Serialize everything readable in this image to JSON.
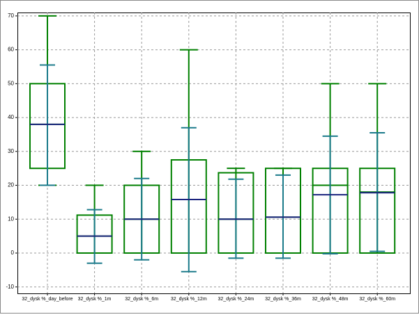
{
  "chart_data": {
    "type": "box",
    "categories": [
      "32_dysk %_day_before",
      "32_dysk %_1m",
      "32_dysk %_6m",
      "32_dysk %_12m",
      "32_dysk %_24m",
      "32_dysk %_36m",
      "32_dysk %_48m",
      "32_dysk %_60m"
    ],
    "min": [
      20,
      0,
      0,
      0,
      0,
      0,
      0,
      0
    ],
    "q1": [
      25,
      0,
      0,
      0,
      0,
      0,
      0,
      0
    ],
    "median": [
      38,
      5,
      10,
      15.8,
      10,
      10.6,
      20,
      18
    ],
    "q3": [
      50,
      11.2,
      20,
      27.5,
      23.7,
      25,
      25,
      25
    ],
    "max": [
      70,
      20,
      30,
      60,
      25,
      25,
      50,
      50
    ],
    "mean": [
      38,
      5,
      10,
      15.8,
      10,
      10.6,
      17.2,
      17.8
    ],
    "sd_low": [
      20,
      -3,
      -2,
      -5.5,
      -1.5,
      -1.5,
      -0.2,
      0.5
    ],
    "sd_high": [
      55.5,
      12.8,
      22,
      37,
      21.8,
      23,
      34.5,
      35.5
    ],
    "box_color": "#008000",
    "mean_color": "#1a237e",
    "sd_color": "#1a7a8a",
    "ylim": [
      -11.9,
      71
    ],
    "yticks": [
      -10,
      0,
      10,
      20,
      30,
      40,
      50,
      60,
      70
    ],
    "grid": true
  }
}
